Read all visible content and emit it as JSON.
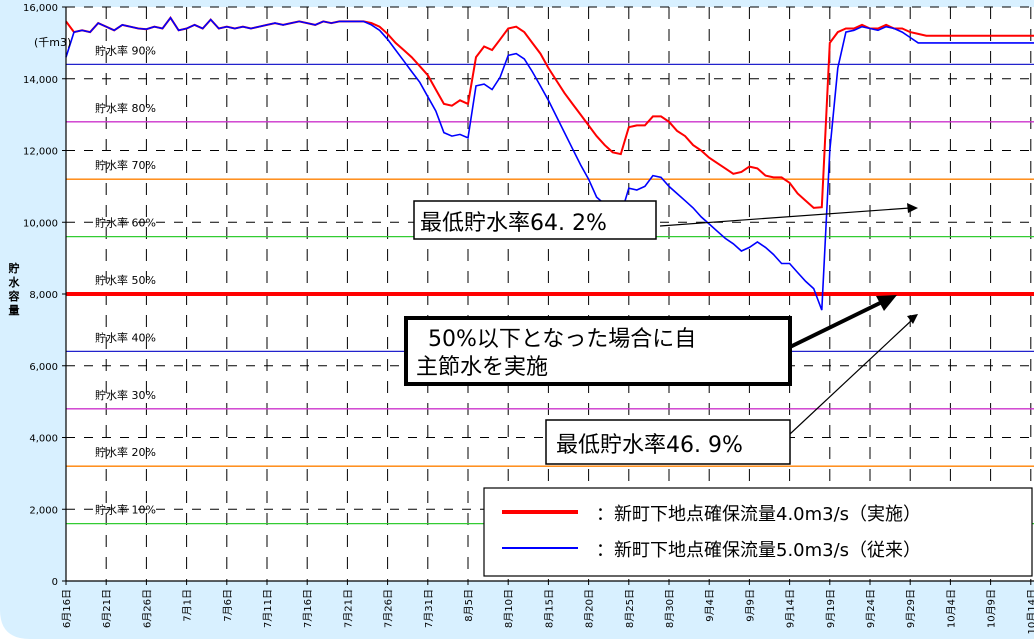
{
  "chart_data": {
    "type": "line",
    "unit_label": "(千m3)",
    "ylabel": "貯水容量",
    "ylim": [
      0,
      16000
    ],
    "y_ticks": [
      "0",
      "2,000",
      "4,000",
      "6,000",
      "8,000",
      "10,000",
      "12,000",
      "14,000",
      "16,000"
    ],
    "x_tick_labels": [
      "6月16日",
      "6月21日",
      "6月26日",
      "7月1日",
      "7月6日",
      "7月11日",
      "7月16日",
      "7月21日",
      "7月26日",
      "7月31日",
      "8月5日",
      "8月10日",
      "8月15日",
      "8月20日",
      "8月25日",
      "8月30日",
      "9月4日",
      "9月9日",
      "9月14日",
      "9月19日",
      "9月24日",
      "9月29日",
      "10月4日",
      "10月9日",
      "10月14日"
    ],
    "reference_lines": [
      {
        "label": "貯水率 10%",
        "value": 1600,
        "color": "#33cc33"
      },
      {
        "label": "貯水率 20%",
        "value": 3200,
        "color": "#ff8000"
      },
      {
        "label": "貯水率 30%",
        "value": 4800,
        "color": "#cc33cc"
      },
      {
        "label": "貯水率 40%",
        "value": 6400,
        "color": "#2222cc"
      },
      {
        "label": "貯水率 50%",
        "value": 8000,
        "color": "#ff0000"
      },
      {
        "label": "貯水率 60%",
        "value": 9600,
        "color": "#33cc33"
      },
      {
        "label": "貯水率 70%",
        "value": 11200,
        "color": "#ff8000"
      },
      {
        "label": "貯水率 80%",
        "value": 12800,
        "color": "#cc33cc"
      },
      {
        "label": "貯水率 90%",
        "value": 14400,
        "color": "#2222cc"
      }
    ],
    "series": [
      {
        "name": "：新町下地点確保流量4.0m3/s（実施）",
        "color": "#ff0000",
        "x": [
          0,
          1,
          2,
          3,
          4,
          5,
          6,
          7,
          8,
          9,
          10,
          11,
          12,
          13,
          14,
          15,
          16,
          17,
          18,
          19,
          20,
          21,
          22,
          23,
          24,
          25,
          26,
          27,
          28,
          29,
          30,
          31,
          32,
          33,
          34,
          35,
          36,
          37,
          38,
          39,
          40,
          41,
          42,
          43,
          44,
          45,
          46,
          47,
          48,
          49,
          50,
          51,
          52,
          53,
          54,
          55,
          56,
          57,
          58,
          59,
          60,
          61,
          62,
          63,
          64,
          65,
          66,
          67,
          68,
          69,
          70,
          71,
          72,
          73,
          74,
          75,
          76,
          77,
          78,
          79,
          80,
          81,
          82,
          83,
          84,
          85,
          86,
          87,
          88,
          89,
          90,
          91,
          92,
          93,
          94,
          95,
          96,
          97,
          98,
          99,
          100,
          101,
          102,
          103,
          104,
          105,
          106,
          107,
          108,
          109,
          110,
          111,
          112,
          113,
          114,
          115,
          116,
          117,
          118,
          119,
          120,
          121
        ],
        "y": [
          15600,
          15300,
          15350,
          15300,
          15550,
          15450,
          15350,
          15500,
          15450,
          15400,
          15380,
          15450,
          15400,
          15700,
          15350,
          15400,
          15500,
          15400,
          15650,
          15400,
          15450,
          15400,
          15450,
          15400,
          15450,
          15500,
          15550,
          15500,
          15550,
          15600,
          15550,
          15500,
          15600,
          15550,
          15600,
          15600,
          15600,
          15600,
          15550,
          15450,
          15250,
          15000,
          14800,
          14600,
          14350,
          14100,
          13700,
          13300,
          13250,
          13400,
          13300,
          14600,
          14900,
          14800,
          15100,
          15400,
          15450,
          15300,
          15000,
          14700,
          14300,
          13950,
          13600,
          13300,
          13000,
          12700,
          12400,
          12150,
          11950,
          11900,
          12650,
          12700,
          12700,
          12950,
          12950,
          12800,
          12550,
          12400,
          12150,
          12000,
          11800,
          11650,
          11500,
          11350,
          11400,
          11550,
          11500,
          11300,
          11250,
          11250,
          11100,
          10800,
          10600,
          10400,
          10420,
          15000,
          15300,
          15400,
          15400,
          15500,
          15400,
          15400,
          15500,
          15400,
          15400,
          15300,
          15250,
          15200,
          15200,
          15200,
          15200,
          15200,
          15200,
          15200,
          15200,
          15200,
          15200,
          15200,
          15200,
          15200,
          15200,
          15200
        ]
      },
      {
        "name": "：新町下地点確保流量5.0m3/s（従来）",
        "color": "#0000ff",
        "x": [
          0,
          1,
          2,
          3,
          4,
          5,
          6,
          7,
          8,
          9,
          10,
          11,
          12,
          13,
          14,
          15,
          16,
          17,
          18,
          19,
          20,
          21,
          22,
          23,
          24,
          25,
          26,
          27,
          28,
          29,
          30,
          31,
          32,
          33,
          34,
          35,
          36,
          37,
          38,
          39,
          40,
          41,
          42,
          43,
          44,
          45,
          46,
          47,
          48,
          49,
          50,
          51,
          52,
          53,
          54,
          55,
          56,
          57,
          58,
          59,
          60,
          61,
          62,
          63,
          64,
          65,
          66,
          67,
          68,
          69,
          70,
          71,
          72,
          73,
          74,
          75,
          76,
          77,
          78,
          79,
          80,
          81,
          82,
          83,
          84,
          85,
          86,
          87,
          88,
          89,
          90,
          91,
          92,
          93,
          94,
          95,
          96,
          97,
          98,
          99,
          100,
          101,
          102,
          103,
          104,
          105,
          106,
          107,
          108,
          109,
          110,
          111,
          112,
          113,
          114,
          115,
          116,
          117,
          118,
          119,
          120,
          121
        ],
        "y": [
          14600,
          15300,
          15350,
          15300,
          15550,
          15450,
          15350,
          15500,
          15450,
          15400,
          15380,
          15450,
          15400,
          15700,
          15350,
          15400,
          15500,
          15400,
          15650,
          15400,
          15450,
          15400,
          15450,
          15400,
          15450,
          15500,
          15550,
          15500,
          15550,
          15600,
          15550,
          15500,
          15600,
          15550,
          15600,
          15600,
          15600,
          15600,
          15500,
          15350,
          15100,
          14800,
          14500,
          14200,
          13900,
          13500,
          13100,
          12500,
          12400,
          12450,
          12350,
          13800,
          13850,
          13700,
          14050,
          14650,
          14700,
          14550,
          14200,
          13800,
          13400,
          12950,
          12500,
          12050,
          11600,
          11200,
          10700,
          10500,
          10300,
          10200,
          10950,
          10900,
          11000,
          11300,
          11250,
          11000,
          10800,
          10600,
          10400,
          10150,
          9950,
          9750,
          9550,
          9400,
          9200,
          9300,
          9450,
          9300,
          9100,
          8850,
          8850,
          8600,
          8350,
          8150,
          7550,
          12000,
          14300,
          15300,
          15350,
          15450,
          15400,
          15350,
          15450,
          15400,
          15300,
          15150,
          15000,
          15000,
          15000,
          15000,
          15000,
          15000,
          15000,
          15000,
          15000,
          15000,
          15000,
          15000,
          15000,
          15000,
          15000,
          15000
        ]
      }
    ],
    "annotations": {
      "min_rate_implemented": "最低貯水率64. 2%",
      "voluntary_saving": "50%以下となった場合に自主節水を実施",
      "min_rate_conventional": "最低貯水率46. 9%"
    },
    "grid": true,
    "legend_position": "bottom-right"
  }
}
